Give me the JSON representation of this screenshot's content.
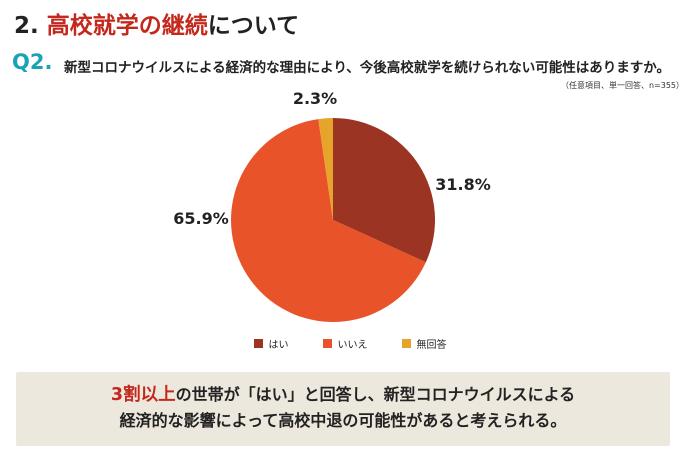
{
  "header": {
    "number": "2.",
    "title_highlight": "高校就学の継続",
    "title_rest": "について"
  },
  "question": {
    "label": "Q2.",
    "text": "新型コロナウイルスによる経済的な理由により、今後高校就学を続けられない可能性はありますか。",
    "note": "（任意項目、単一回答、n=355）"
  },
  "chart_data": {
    "type": "pie",
    "categories": [
      "はい",
      "いいえ",
      "無回答"
    ],
    "values": [
      31.8,
      65.9,
      2.3
    ],
    "value_labels": [
      "31.8%",
      "65.9%",
      "2.3%"
    ],
    "colors": [
      "#9b3422",
      "#e8532a",
      "#e6a52a"
    ],
    "legend_position": "bottom",
    "n": 355
  },
  "callout": {
    "highlight": "3割以上",
    "line1_rest": "の世帯が「はい」と回答し、新型コロナウイルスによる",
    "line2": "経済的な影響によって高校中退の可能性があると考えられる。"
  }
}
